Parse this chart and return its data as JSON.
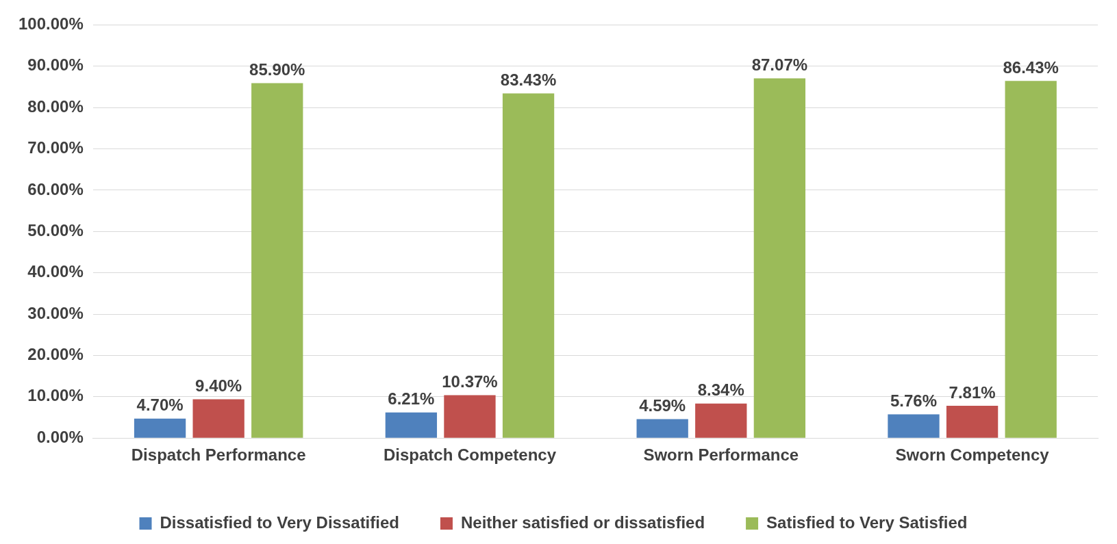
{
  "chart_data": {
    "type": "bar",
    "categories": [
      "Dispatch Performance",
      "Dispatch Competency",
      "Sworn Performance",
      "Sworn Competency"
    ],
    "series": [
      {
        "name": "Dissatisfied to Very Dissatified",
        "color": "#4f81bd",
        "values": [
          4.7,
          6.21,
          4.59,
          5.76
        ],
        "value_labels": [
          "4.70%",
          "6.21%",
          "4.59%",
          "5.76%"
        ]
      },
      {
        "name": "Neither satisfied or dissatisfied",
        "color": "#c0504d",
        "values": [
          9.4,
          10.37,
          8.34,
          7.81
        ],
        "value_labels": [
          "9.40%",
          "10.37%",
          "8.34%",
          "7.81%"
        ]
      },
      {
        "name": "Satisfied to Very Satisfied",
        "color": "#9bbb59",
        "values": [
          85.9,
          83.43,
          87.07,
          86.43
        ],
        "value_labels": [
          "85.90%",
          "83.43%",
          "87.07%",
          "86.43%"
        ]
      }
    ],
    "ylim": [
      0,
      100
    ],
    "yticks": [
      {
        "value": 0,
        "label": "0.00%"
      },
      {
        "value": 10,
        "label": "10.00%"
      },
      {
        "value": 20,
        "label": "20.00%"
      },
      {
        "value": 30,
        "label": "30.00%"
      },
      {
        "value": 40,
        "label": "40.00%"
      },
      {
        "value": 50,
        "label": "50.00%"
      },
      {
        "value": 60,
        "label": "60.00%"
      },
      {
        "value": 70,
        "label": "70.00%"
      },
      {
        "value": 80,
        "label": "80.00%"
      },
      {
        "value": 90,
        "label": "90.00%"
      },
      {
        "value": 100,
        "label": "100.00%"
      }
    ],
    "grid": "y",
    "legend": "bottom"
  }
}
